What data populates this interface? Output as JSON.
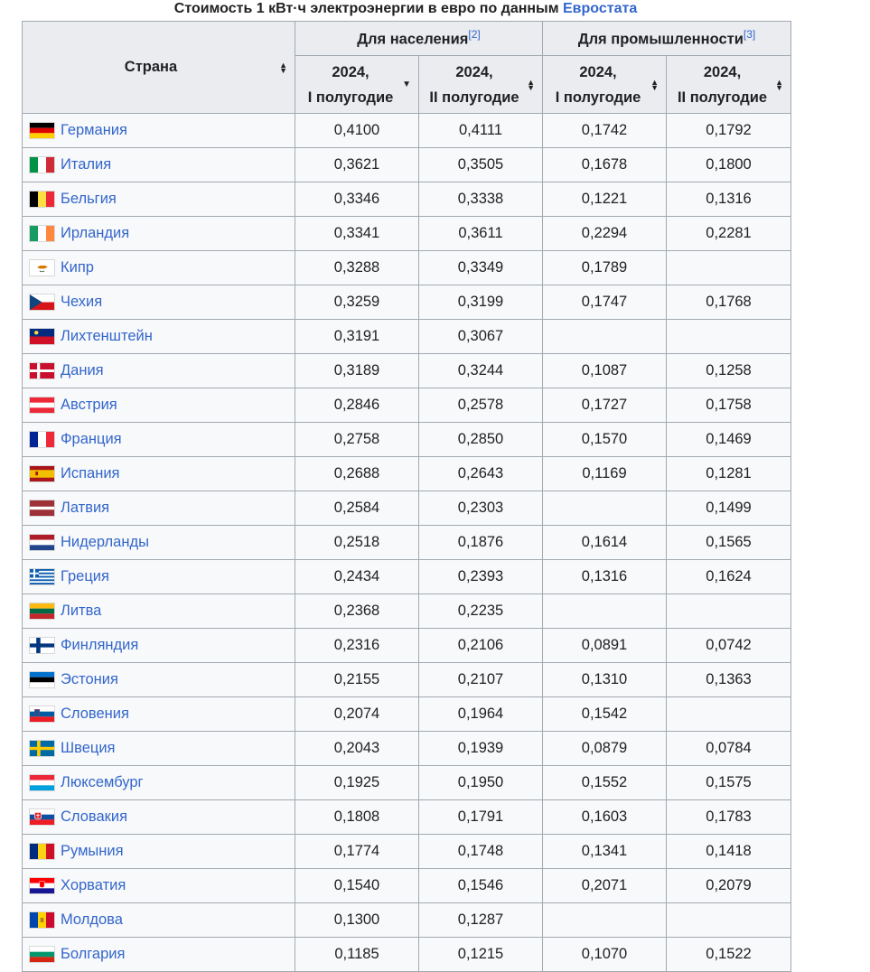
{
  "caption": {
    "text": "Стоимость 1 кВт·ч электроэнергии в евро по данным",
    "link": "Евростата"
  },
  "header": {
    "country": "Страна",
    "household": "Для населения",
    "household_ref": "[2]",
    "industry": "Для промышленности",
    "industry_ref": "[3]",
    "h1_year": "2024,",
    "h1_half": "I полугодие",
    "h2_year": "2024,",
    "h2_half": "II полугодие",
    "i1_year": "2024,",
    "i1_half": "I полугодие",
    "i2_year": "2024,",
    "i2_half": "II полугодие"
  },
  "rows": [
    {
      "country": "Германия",
      "flag": "de",
      "h1": "0,4100",
      "h2": "0,4111",
      "i1": "0,1742",
      "i2": "0,1792"
    },
    {
      "country": "Италия",
      "flag": "it",
      "h1": "0,3621",
      "h2": "0,3505",
      "i1": "0,1678",
      "i2": "0,1800"
    },
    {
      "country": "Бельгия",
      "flag": "be",
      "h1": "0,3346",
      "h2": "0,3338",
      "i1": "0,1221",
      "i2": "0,1316"
    },
    {
      "country": "Ирландия",
      "flag": "ie",
      "h1": "0,3341",
      "h2": "0,3611",
      "i1": "0,2294",
      "i2": "0,2281"
    },
    {
      "country": "Кипр",
      "flag": "cy",
      "h1": "0,3288",
      "h2": "0,3349",
      "i1": "0,1789",
      "i2": ""
    },
    {
      "country": "Чехия",
      "flag": "cz",
      "h1": "0,3259",
      "h2": "0,3199",
      "i1": "0,1747",
      "i2": "0,1768"
    },
    {
      "country": "Лихтенштейн",
      "flag": "li",
      "h1": "0,3191",
      "h2": "0,3067",
      "i1": "",
      "i2": ""
    },
    {
      "country": "Дания",
      "flag": "dk",
      "h1": "0,3189",
      "h2": "0,3244",
      "i1": "0,1087",
      "i2": "0,1258"
    },
    {
      "country": "Австрия",
      "flag": "at",
      "h1": "0,2846",
      "h2": "0,2578",
      "i1": "0,1727",
      "i2": "0,1758"
    },
    {
      "country": "Франция",
      "flag": "fr",
      "h1": "0,2758",
      "h2": "0,2850",
      "i1": "0,1570",
      "i2": "0,1469"
    },
    {
      "country": "Испания",
      "flag": "es",
      "h1": "0,2688",
      "h2": "0,2643",
      "i1": "0,1169",
      "i2": "0,1281"
    },
    {
      "country": "Латвия",
      "flag": "lv",
      "h1": "0,2584",
      "h2": "0,2303",
      "i1": "",
      "i2": "0,1499"
    },
    {
      "country": "Нидерланды",
      "flag": "nl",
      "h1": "0,2518",
      "h2": "0,1876",
      "i1": "0,1614",
      "i2": "0,1565"
    },
    {
      "country": "Греция",
      "flag": "gr",
      "h1": "0,2434",
      "h2": "0,2393",
      "i1": "0,1316",
      "i2": "0,1624"
    },
    {
      "country": "Литва",
      "flag": "lt",
      "h1": "0,2368",
      "h2": "0,2235",
      "i1": "",
      "i2": ""
    },
    {
      "country": "Финляндия",
      "flag": "fi",
      "h1": "0,2316",
      "h2": "0,2106",
      "i1": "0,0891",
      "i2": "0,0742"
    },
    {
      "country": "Эстония",
      "flag": "ee",
      "h1": "0,2155",
      "h2": "0,2107",
      "i1": "0,1310",
      "i2": "0,1363"
    },
    {
      "country": "Словения",
      "flag": "si",
      "h1": "0,2074",
      "h2": "0,1964",
      "i1": "0,1542",
      "i2": ""
    },
    {
      "country": "Швеция",
      "flag": "se",
      "h1": "0,2043",
      "h2": "0,1939",
      "i1": "0,0879",
      "i2": "0,0784"
    },
    {
      "country": "Люксембург",
      "flag": "lu",
      "h1": "0,1925",
      "h2": "0,1950",
      "i1": "0,1552",
      "i2": "0,1575"
    },
    {
      "country": "Словакия",
      "flag": "sk",
      "h1": "0,1808",
      "h2": "0,1791",
      "i1": "0,1603",
      "i2": "0,1783"
    },
    {
      "country": "Румыния",
      "flag": "ro",
      "h1": "0,1774",
      "h2": "0,1748",
      "i1": "0,1341",
      "i2": "0,1418"
    },
    {
      "country": "Хорватия",
      "flag": "hr",
      "h1": "0,1540",
      "h2": "0,1546",
      "i1": "0,2071",
      "i2": "0,2079"
    },
    {
      "country": "Молдова",
      "flag": "md",
      "h1": "0,1300",
      "h2": "0,1287",
      "i1": "",
      "i2": ""
    },
    {
      "country": "Болгария",
      "flag": "bg",
      "h1": "0,1185",
      "h2": "0,1215",
      "i1": "0,1070",
      "i2": "0,1522"
    }
  ]
}
